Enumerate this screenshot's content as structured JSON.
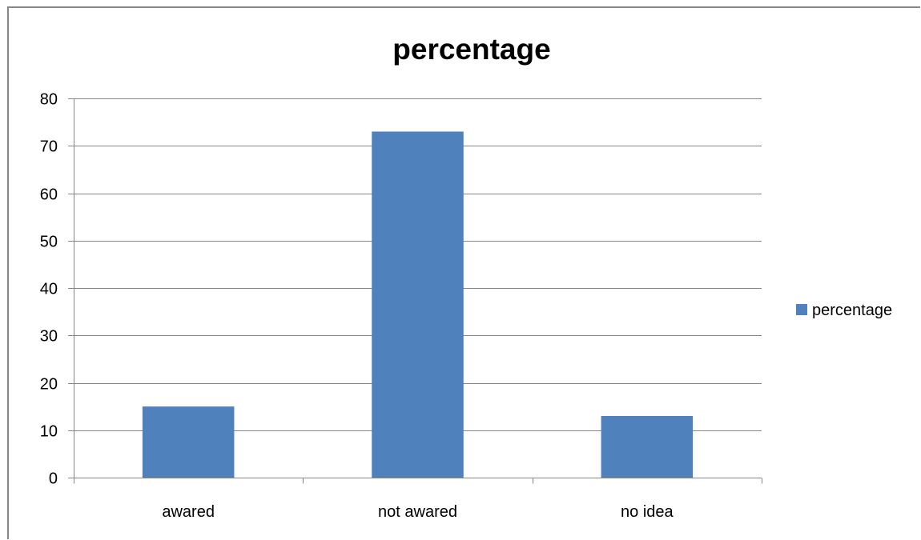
{
  "chart_data": {
    "type": "bar",
    "title": "percentage",
    "categories": [
      "awared",
      "not awared",
      "no idea"
    ],
    "series": [
      {
        "name": "percentage",
        "values": [
          15,
          73,
          13
        ],
        "color": "#4F81BD"
      }
    ],
    "ylim": [
      0,
      80
    ],
    "yticks": [
      0,
      10,
      20,
      30,
      40,
      50,
      60,
      70,
      80
    ],
    "grid": true,
    "legend_position": "right",
    "colors": {
      "gridline": "#878787",
      "axis": "#878787"
    }
  }
}
